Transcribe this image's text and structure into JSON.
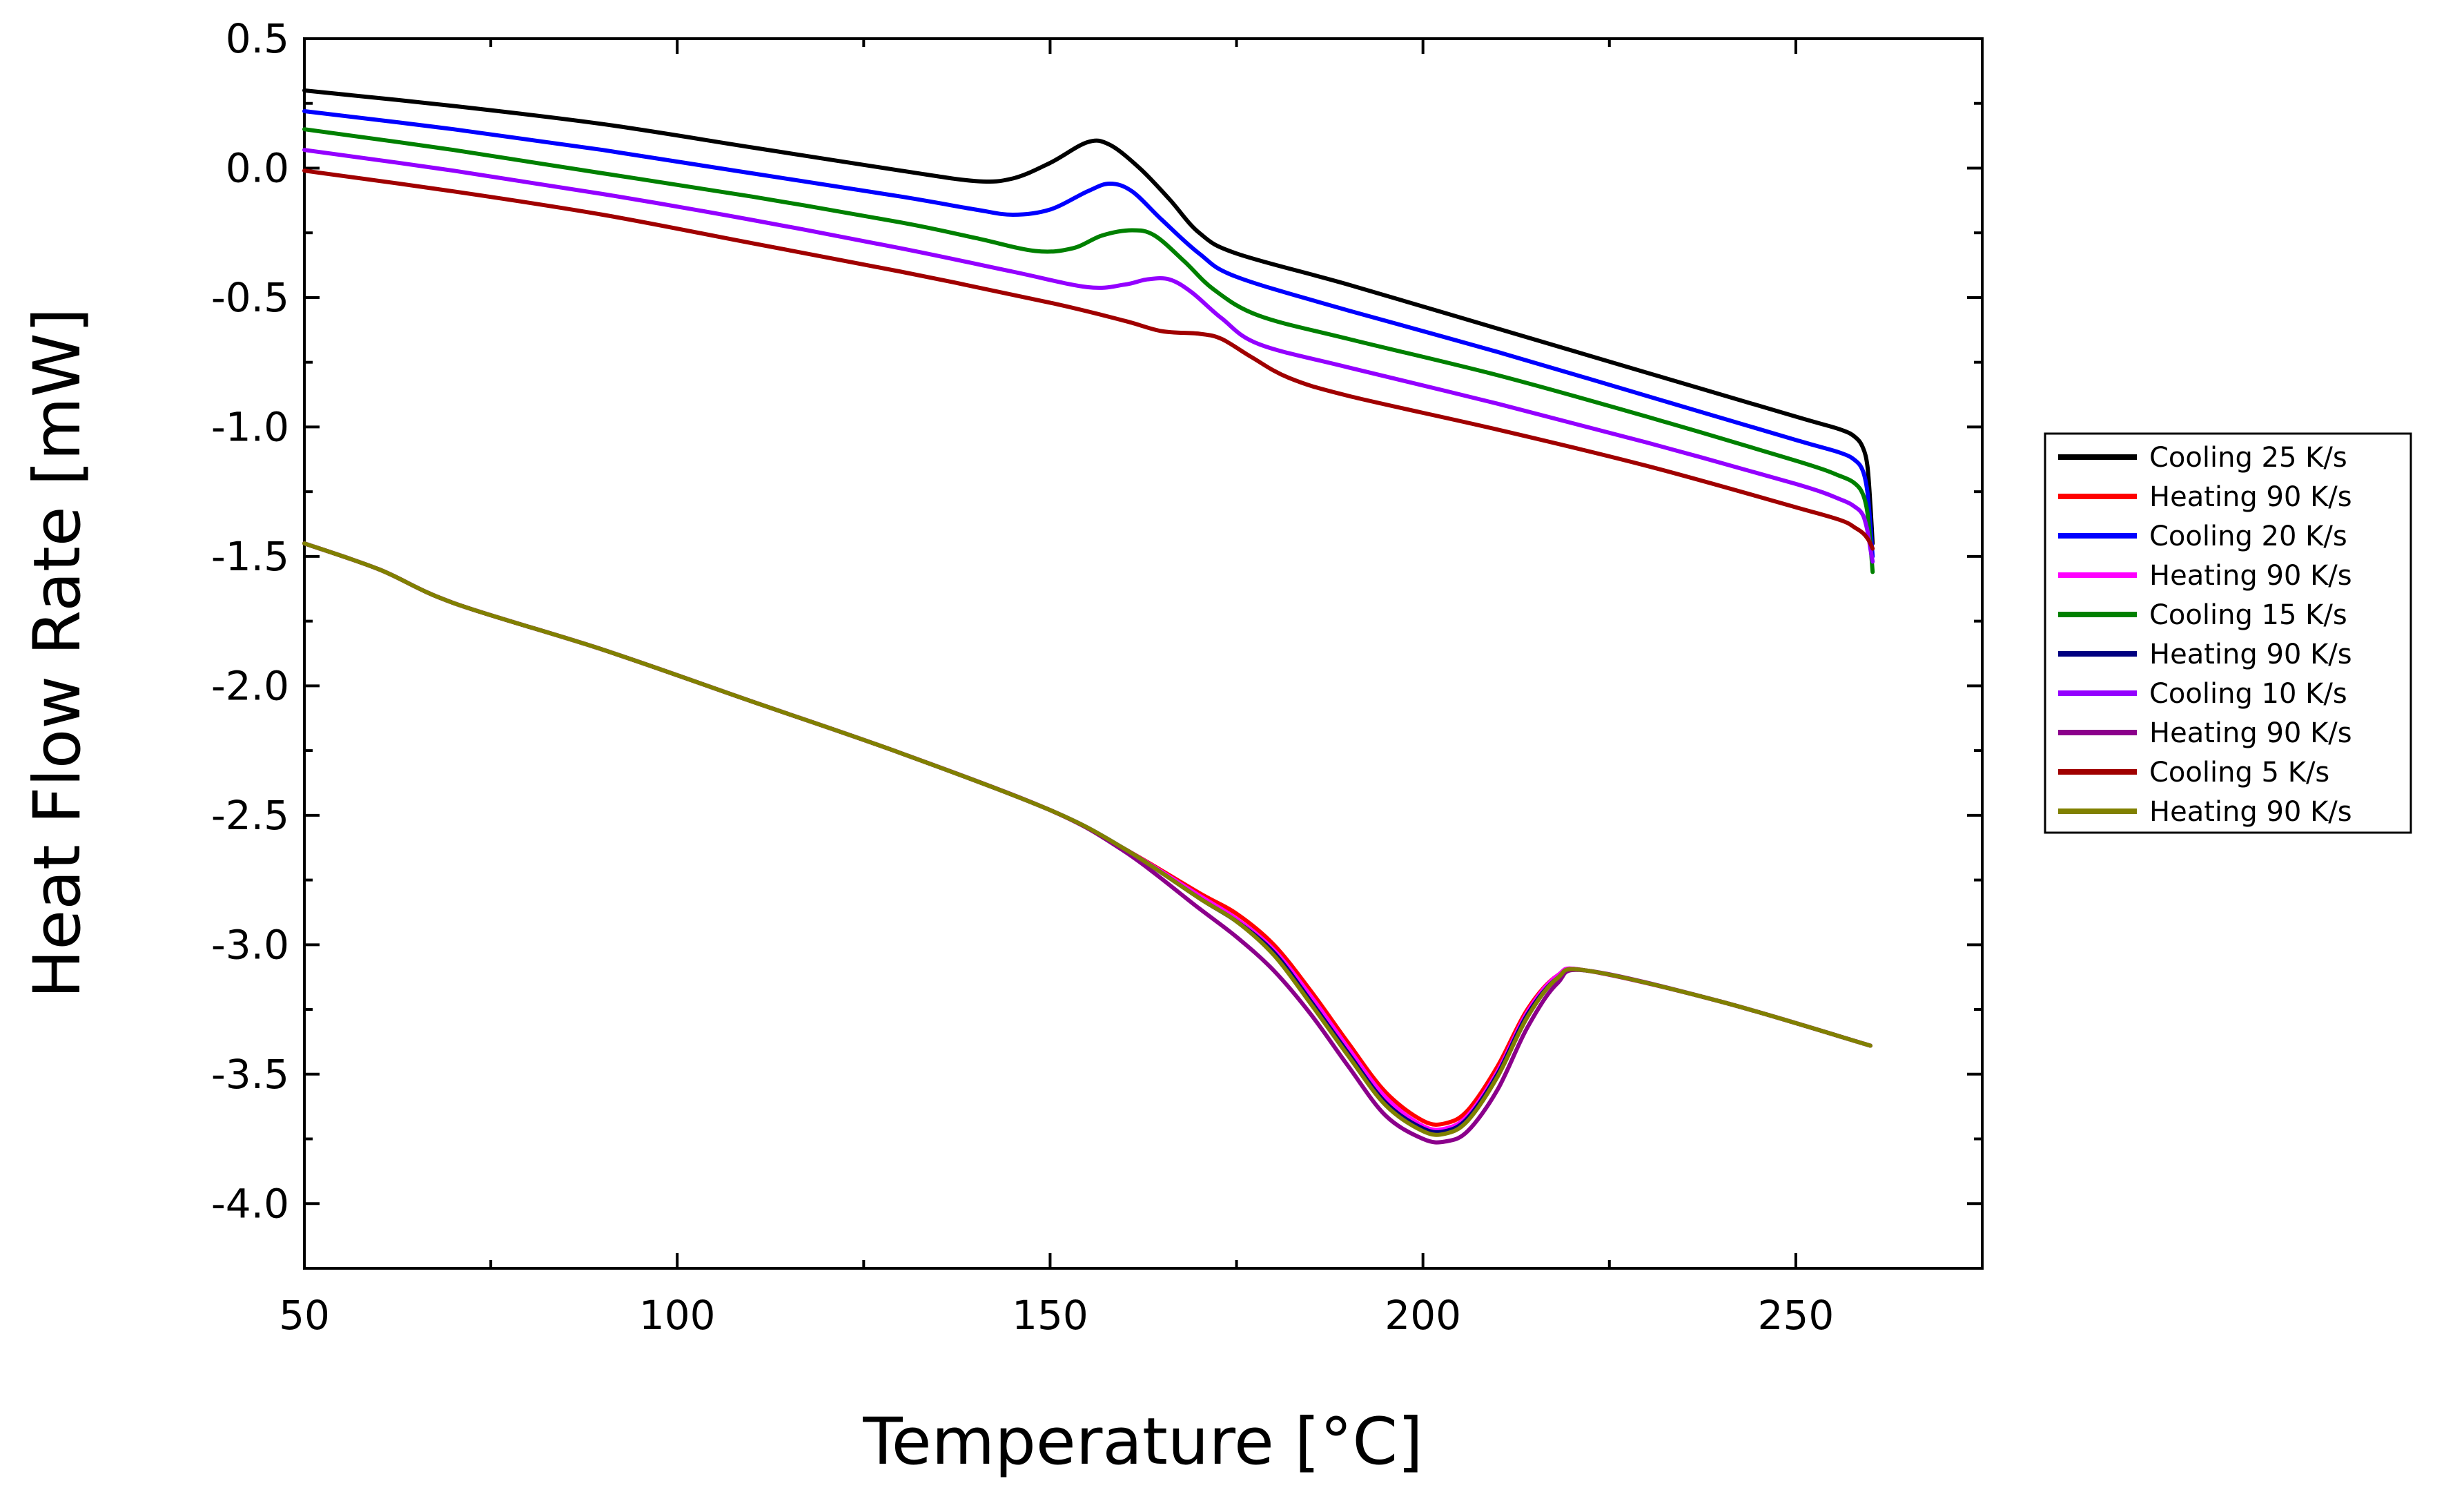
{
  "chart_data": {
    "type": "line",
    "title": "",
    "xlabel": "Temperature [°C]",
    "ylabel": "Heat Flow Rate [mW]",
    "xlim": [
      50,
      275
    ],
    "ylim": [
      -4.25,
      0.5
    ],
    "xticks": [
      50,
      100,
      150,
      200,
      250
    ],
    "xtick_labels": [
      "50",
      "100",
      "150",
      "200",
      "250"
    ],
    "yticks": [
      0.5,
      0.0,
      -0.5,
      -1.0,
      -1.5,
      -2.0,
      -2.5,
      -3.0,
      -3.5,
      -4.0
    ],
    "ytick_labels": [
      "0.5",
      "0.0",
      "-0.5",
      "-1.0",
      "-1.5",
      "-2.0",
      "-2.5",
      "-3.0",
      "-3.5",
      "-4.0"
    ],
    "grid": false,
    "legend_position": "right",
    "series": [
      {
        "name": "Cooling 25 K/s",
        "color": "#000000",
        "points": [
          [
            50,
            0.3
          ],
          [
            70,
            0.24
          ],
          [
            90,
            0.17
          ],
          [
            110,
            0.08
          ],
          [
            130,
            -0.01
          ],
          [
            140,
            -0.05
          ],
          [
            145,
            -0.04
          ],
          [
            150,
            0.02
          ],
          [
            155,
            0.1
          ],
          [
            158,
            0.09
          ],
          [
            162,
            0.0
          ],
          [
            166,
            -0.12
          ],
          [
            170,
            -0.25
          ],
          [
            175,
            -0.33
          ],
          [
            190,
            -0.45
          ],
          [
            210,
            -0.62
          ],
          [
            230,
            -0.79
          ],
          [
            250,
            -0.96
          ],
          [
            256,
            -1.01
          ],
          [
            258,
            -1.04
          ],
          [
            259,
            -1.08
          ],
          [
            259.6,
            -1.15
          ],
          [
            260,
            -1.3
          ],
          [
            260.3,
            -1.45
          ]
        ]
      },
      {
        "name": "Heating 90 K/s",
        "color": "#ff0000",
        "points": [
          [
            50,
            -1.45
          ],
          [
            60,
            -1.55
          ],
          [
            70,
            -1.68
          ],
          [
            90,
            -1.86
          ],
          [
            110,
            -2.06
          ],
          [
            130,
            -2.26
          ],
          [
            150,
            -2.48
          ],
          [
            160,
            -2.63
          ],
          [
            170,
            -2.8
          ],
          [
            175,
            -2.88
          ],
          [
            180,
            -3.0
          ],
          [
            185,
            -3.18
          ],
          [
            190,
            -3.38
          ],
          [
            195,
            -3.57
          ],
          [
            200,
            -3.68
          ],
          [
            203,
            -3.69
          ],
          [
            206,
            -3.64
          ],
          [
            210,
            -3.47
          ],
          [
            214,
            -3.25
          ],
          [
            218,
            -3.12
          ],
          [
            222,
            -3.1
          ],
          [
            240,
            -3.22
          ],
          [
            260,
            -3.39
          ]
        ]
      },
      {
        "name": "Cooling 20 K/s",
        "color": "#0000ff",
        "points": [
          [
            50,
            0.22
          ],
          [
            70,
            0.15
          ],
          [
            90,
            0.07
          ],
          [
            110,
            -0.02
          ],
          [
            130,
            -0.11
          ],
          [
            140,
            -0.16
          ],
          [
            145,
            -0.18
          ],
          [
            150,
            -0.16
          ],
          [
            155,
            -0.09
          ],
          [
            158,
            -0.06
          ],
          [
            161,
            -0.09
          ],
          [
            165,
            -0.2
          ],
          [
            170,
            -0.33
          ],
          [
            175,
            -0.42
          ],
          [
            190,
            -0.55
          ],
          [
            210,
            -0.71
          ],
          [
            230,
            -0.88
          ],
          [
            250,
            -1.05
          ],
          [
            256,
            -1.1
          ],
          [
            258,
            -1.13
          ],
          [
            259,
            -1.17
          ],
          [
            259.6,
            -1.25
          ],
          [
            260,
            -1.38
          ],
          [
            260.3,
            -1.5
          ]
        ]
      },
      {
        "name": "Heating 90 K/s",
        "color": "#ff00ff",
        "points": [
          [
            50,
            -1.45
          ],
          [
            60,
            -1.55
          ],
          [
            70,
            -1.68
          ],
          [
            90,
            -1.86
          ],
          [
            110,
            -2.06
          ],
          [
            130,
            -2.26
          ],
          [
            150,
            -2.48
          ],
          [
            160,
            -2.63
          ],
          [
            170,
            -2.81
          ],
          [
            175,
            -2.9
          ],
          [
            180,
            -3.02
          ],
          [
            185,
            -3.2
          ],
          [
            190,
            -3.4
          ],
          [
            195,
            -3.59
          ],
          [
            200,
            -3.7
          ],
          [
            203,
            -3.71
          ],
          [
            206,
            -3.66
          ],
          [
            210,
            -3.49
          ],
          [
            214,
            -3.26
          ],
          [
            218,
            -3.12
          ],
          [
            222,
            -3.1
          ],
          [
            240,
            -3.22
          ],
          [
            260,
            -3.39
          ]
        ]
      },
      {
        "name": "Cooling 15 K/s",
        "color": "#008000",
        "points": [
          [
            50,
            0.15
          ],
          [
            70,
            0.07
          ],
          [
            90,
            -0.02
          ],
          [
            110,
            -0.11
          ],
          [
            130,
            -0.21
          ],
          [
            140,
            -0.27
          ],
          [
            148,
            -0.32
          ],
          [
            153,
            -0.31
          ],
          [
            157,
            -0.26
          ],
          [
            161,
            -0.24
          ],
          [
            164,
            -0.26
          ],
          [
            168,
            -0.36
          ],
          [
            172,
            -0.47
          ],
          [
            178,
            -0.57
          ],
          [
            190,
            -0.66
          ],
          [
            210,
            -0.8
          ],
          [
            230,
            -0.96
          ],
          [
            250,
            -1.13
          ],
          [
            256,
            -1.19
          ],
          [
            258,
            -1.22
          ],
          [
            259,
            -1.26
          ],
          [
            259.6,
            -1.33
          ],
          [
            260,
            -1.45
          ],
          [
            260.3,
            -1.56
          ]
        ]
      },
      {
        "name": "Heating 90 K/s",
        "color": "#000080",
        "points": [
          [
            50,
            -1.45
          ],
          [
            60,
            -1.55
          ],
          [
            70,
            -1.68
          ],
          [
            90,
            -1.86
          ],
          [
            110,
            -2.06
          ],
          [
            130,
            -2.26
          ],
          [
            150,
            -2.48
          ],
          [
            160,
            -2.63
          ],
          [
            170,
            -2.82
          ],
          [
            175,
            -2.91
          ],
          [
            180,
            -3.03
          ],
          [
            185,
            -3.22
          ],
          [
            190,
            -3.42
          ],
          [
            195,
            -3.61
          ],
          [
            200,
            -3.71
          ],
          [
            203,
            -3.72
          ],
          [
            206,
            -3.67
          ],
          [
            210,
            -3.5
          ],
          [
            214,
            -3.27
          ],
          [
            218,
            -3.13
          ],
          [
            222,
            -3.1
          ],
          [
            240,
            -3.22
          ],
          [
            260,
            -3.39
          ]
        ]
      },
      {
        "name": "Cooling 10 K/s",
        "color": "#9400ff",
        "points": [
          [
            50,
            0.07
          ],
          [
            70,
            -0.01
          ],
          [
            90,
            -0.1
          ],
          [
            110,
            -0.2
          ],
          [
            130,
            -0.31
          ],
          [
            145,
            -0.4
          ],
          [
            155,
            -0.46
          ],
          [
            160,
            -0.45
          ],
          [
            163,
            -0.43
          ],
          [
            166,
            -0.43
          ],
          [
            169,
            -0.48
          ],
          [
            173,
            -0.58
          ],
          [
            178,
            -0.68
          ],
          [
            190,
            -0.77
          ],
          [
            210,
            -0.91
          ],
          [
            230,
            -1.06
          ],
          [
            250,
            -1.22
          ],
          [
            256,
            -1.28
          ],
          [
            258,
            -1.31
          ],
          [
            259,
            -1.34
          ],
          [
            259.6,
            -1.4
          ],
          [
            260,
            -1.47
          ],
          [
            260.3,
            -1.52
          ]
        ]
      },
      {
        "name": "Heating 90 K/s",
        "color": "#8b008b",
        "points": [
          [
            50,
            -1.45
          ],
          [
            60,
            -1.55
          ],
          [
            70,
            -1.68
          ],
          [
            90,
            -1.86
          ],
          [
            110,
            -2.06
          ],
          [
            130,
            -2.26
          ],
          [
            150,
            -2.48
          ],
          [
            160,
            -2.64
          ],
          [
            170,
            -2.86
          ],
          [
            175,
            -2.97
          ],
          [
            180,
            -3.1
          ],
          [
            185,
            -3.27
          ],
          [
            190,
            -3.47
          ],
          [
            195,
            -3.66
          ],
          [
            200,
            -3.75
          ],
          [
            203,
            -3.76
          ],
          [
            206,
            -3.72
          ],
          [
            210,
            -3.56
          ],
          [
            214,
            -3.32
          ],
          [
            218,
            -3.15
          ],
          [
            222,
            -3.1
          ],
          [
            240,
            -3.22
          ],
          [
            260,
            -3.39
          ]
        ]
      },
      {
        "name": "Cooling 5 K/s",
        "color": "#a00000",
        "points": [
          [
            50,
            -0.01
          ],
          [
            70,
            -0.09
          ],
          [
            90,
            -0.18
          ],
          [
            110,
            -0.29
          ],
          [
            130,
            -0.4
          ],
          [
            150,
            -0.52
          ],
          [
            160,
            -0.59
          ],
          [
            165,
            -0.63
          ],
          [
            170,
            -0.64
          ],
          [
            173,
            -0.66
          ],
          [
            177,
            -0.73
          ],
          [
            182,
            -0.81
          ],
          [
            190,
            -0.88
          ],
          [
            210,
            -1.01
          ],
          [
            230,
            -1.15
          ],
          [
            250,
            -1.31
          ],
          [
            256,
            -1.36
          ],
          [
            258,
            -1.39
          ],
          [
            259,
            -1.41
          ],
          [
            259.6,
            -1.43
          ],
          [
            260,
            -1.45
          ],
          [
            260.3,
            -1.47
          ]
        ]
      },
      {
        "name": "Heating 90 K/s",
        "color": "#808000",
        "points": [
          [
            50,
            -1.45
          ],
          [
            60,
            -1.55
          ],
          [
            70,
            -1.68
          ],
          [
            90,
            -1.86
          ],
          [
            110,
            -2.06
          ],
          [
            130,
            -2.26
          ],
          [
            150,
            -2.48
          ],
          [
            160,
            -2.63
          ],
          [
            170,
            -2.82
          ],
          [
            175,
            -2.91
          ],
          [
            180,
            -3.04
          ],
          [
            185,
            -3.23
          ],
          [
            190,
            -3.43
          ],
          [
            195,
            -3.62
          ],
          [
            200,
            -3.72
          ],
          [
            203,
            -3.73
          ],
          [
            206,
            -3.68
          ],
          [
            210,
            -3.51
          ],
          [
            214,
            -3.28
          ],
          [
            218,
            -3.13
          ],
          [
            222,
            -3.1
          ],
          [
            240,
            -3.22
          ],
          [
            260,
            -3.39
          ]
        ]
      }
    ]
  }
}
